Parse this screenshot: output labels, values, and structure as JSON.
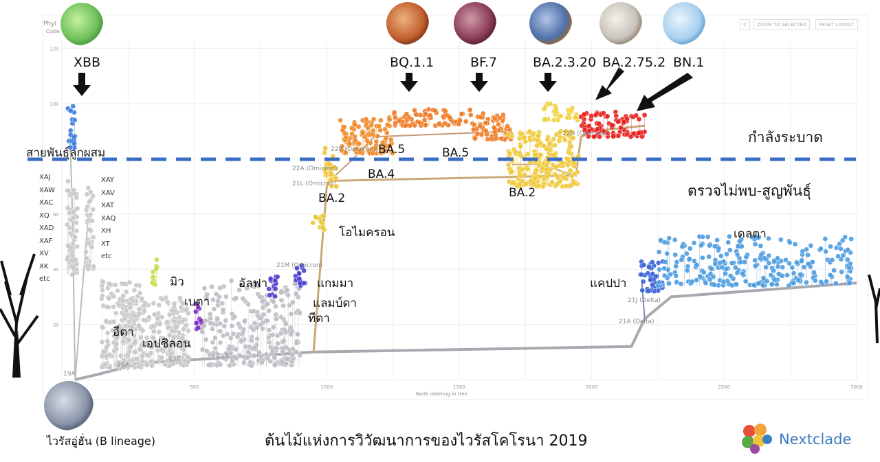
{
  "panel": {
    "title_partial": "Phyl",
    "subtitle_partial": "Clade",
    "zoom_to_selected": "ZOOM TO SELECTED",
    "reset_layout": "RESET LAYOUT",
    "search_icon": "magnifier-icon"
  },
  "chart_data": {
    "type": "scatter",
    "xlabel": "Node ordering in tree",
    "xlim": [
      0,
      3000
    ],
    "ylim": [
      0,
      120
    ],
    "x_ticks": [
      "500",
      "1000",
      "1500",
      "2000",
      "2500",
      "3000"
    ],
    "y_ticks": [
      "20",
      "40",
      "60",
      "100",
      "120"
    ],
    "grid": true,
    "threshold_line": {
      "y": 80,
      "style": "dashed",
      "color": "#3b6cc4"
    },
    "clusters": [
      {
        "name": "recombinant-left",
        "x": [
          20,
          60
        ],
        "y": [
          38,
          72
        ],
        "color": "#c9c9c9"
      },
      {
        "name": "recombinant-right",
        "x": [
          90,
          120
        ],
        "y": [
          40,
          70
        ],
        "color": "#c9c9c9"
      },
      {
        "name": "XBB",
        "x": [
          20,
          50
        ],
        "y": [
          84,
          100
        ],
        "color": "#3f7ee0"
      },
      {
        "name": "20A",
        "x": [
          150,
          300
        ],
        "y": [
          4,
          36
        ],
        "color": "#c8c8c8"
      },
      {
        "name": "20C",
        "x": [
          300,
          480
        ],
        "y": [
          5,
          30
        ],
        "color": "#c8c8c8"
      },
      {
        "name": "mu",
        "x": [
          340,
          360
        ],
        "y": [
          34,
          44
        ],
        "color": "#c8dc4a"
      },
      {
        "name": "beta",
        "x": [
          500,
          530
        ],
        "y": [
          18,
          28
        ],
        "color": "#7b2fc0"
      },
      {
        "name": "20B",
        "x": [
          530,
          900
        ],
        "y": [
          5,
          36
        ],
        "color": "#bdbdc4"
      },
      {
        "name": "alpha",
        "x": [
          780,
          820
        ],
        "y": [
          30,
          38
        ],
        "color": "#5a3bd0"
      },
      {
        "name": "gamma",
        "x": [
          880,
          920
        ],
        "y": [
          33,
          42
        ],
        "color": "#4a40d0"
      },
      {
        "name": "omicron-21M",
        "x": [
          940,
          990
        ],
        "y": [
          54,
          60
        ],
        "color": "#e8c930"
      },
      {
        "name": "BA.2-early",
        "x": [
          990,
          1040
        ],
        "y": [
          70,
          84
        ],
        "color": "#efc534"
      },
      {
        "name": "BA.4/BA.5",
        "x": [
          1050,
          1250
        ],
        "y": [
          82,
          95
        ],
        "color": "#f08a2a"
      },
      {
        "name": "BQ.1.1",
        "x": [
          1250,
          1550
        ],
        "y": [
          92,
          98
        ],
        "color": "#ef7a25"
      },
      {
        "name": "BF.7",
        "x": [
          1550,
          1700
        ],
        "y": [
          87,
          97
        ],
        "color": "#f07e28"
      },
      {
        "name": "BA.2",
        "x": [
          1680,
          1950
        ],
        "y": [
          70,
          90
        ],
        "color": "#f0c93a"
      },
      {
        "name": "BA.2.3.20",
        "x": [
          1820,
          1950
        ],
        "y": [
          94,
          100
        ],
        "color": "#f2d23d"
      },
      {
        "name": "BA.2.75.2/BN.1",
        "x": [
          1960,
          2200
        ],
        "y": [
          88,
          97
        ],
        "color": "#e8201c"
      },
      {
        "name": "kappa",
        "x": [
          2180,
          2270
        ],
        "y": [
          32,
          43
        ],
        "color": "#3a62d6"
      },
      {
        "name": "delta",
        "x": [
          2250,
          2980
        ],
        "y": [
          34,
          52
        ],
        "color": "#4d9de0"
      }
    ]
  },
  "annotations": {
    "xbb": "XBB",
    "bq": "BQ.1.1",
    "bf7": "BF.7",
    "ba2320": "BA.2.3.20",
    "ba2752": "BA.2.75.2",
    "bn1": "BN.1",
    "spreading": "กำลังระบาด",
    "not_detected": "ตรวจไม่พบ-สูญพันธุ์",
    "recombinant": "สายพันธุ์ลูกผสม",
    "recombinant_left": [
      "XAJ",
      "XAW",
      "XAC",
      "XQ",
      "XAD",
      "XAF",
      "XV",
      "XK",
      "etc"
    ],
    "recombinant_right": [
      "XAY",
      "XAV",
      "XAT",
      "XAQ",
      "XH",
      "XT",
      "etc"
    ],
    "ba5a": "BA.5",
    "ba5b": "BA.5",
    "ba4": "BA.4",
    "ba2a": "BA.2",
    "ba2b": "BA.2",
    "omicron": "โอไมครอน",
    "gamma": "แกมมา",
    "lambda": "แลมบ์ดา",
    "theta": "ทีตา",
    "alpha": "อัลฟา",
    "beta": "เบตา",
    "mu": "มิว",
    "eta": "อีตา",
    "epsilon": "เอปซิลอน",
    "kappa": "แคปปา",
    "delta": "เดลตา",
    "clade_22b": "22B (Omicron)",
    "clade_22a": "22A (Omicron)",
    "clade_21l": "21L (Omicron)",
    "clade_21m": "21M (Omicron)",
    "clade_22d": "22D (Omicron)",
    "clade_21j": "21J (Delta)",
    "clade_21a": "21A (Delta)",
    "clade_20a": "20A",
    "clade_20c": "20C",
    "clade_20b": "20B",
    "clade_19a": "19A"
  },
  "footer": {
    "wuhan": "ไวรัสอู่ฮั่น (B lineage)",
    "title": "ต้นไม้แห่งการวิวัฒนาการของไวรัสโคโรนา 2019",
    "logo": "Nextclade"
  },
  "colors": {
    "dashed_line": "#3b6cc4",
    "logo_text": "#3b7bbf"
  }
}
